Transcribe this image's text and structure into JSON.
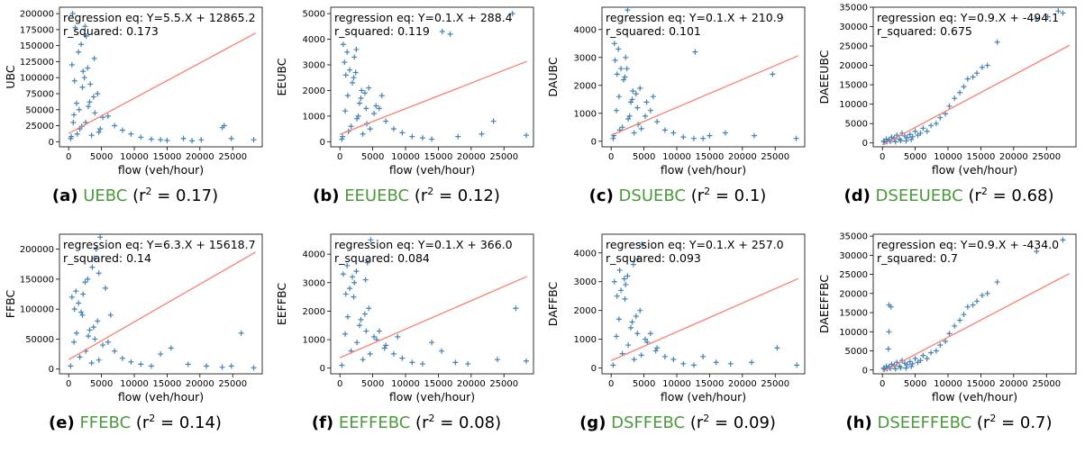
{
  "chart_data": [
    {
      "type": "scatter",
      "xlabel": "flow (veh/hour)",
      "ylabel": "UBC",
      "xlim": [
        -1400,
        29500
      ],
      "ylim": [
        -8000,
        210000
      ],
      "xticks": [
        0,
        5000,
        10000,
        15000,
        20000,
        25000
      ],
      "yticks": [
        0,
        25000,
        50000,
        75000,
        100000,
        125000,
        150000,
        175000,
        200000
      ],
      "annotation": [
        "regression eq: Y=5.5.X + 12865.2",
        "r_squared: 0.173"
      ],
      "regression": {
        "slope": 5.5,
        "intercept": 12865.2
      },
      "series": [
        {
          "x": [
            300,
            800,
            1200,
            1700,
            2100,
            2600,
            3000,
            3500,
            4000,
            4600,
            5200,
            500,
            1500,
            2500,
            3800,
            900,
            2200,
            3200,
            4400,
            6000,
            7000,
            8200,
            9500,
            11000,
            12600,
            14000,
            15000,
            17500,
            18800,
            20200,
            23400,
            23700,
            24800,
            28200,
            600,
            1900,
            2700,
            3900,
            1000,
            2400,
            400,
            1300,
            3300,
            2000,
            4800,
            700,
            2900,
            1600
          ],
          "y": [
            5000,
            42000,
            60000,
            20000,
            85000,
            30000,
            55000,
            10000,
            45000,
            15000,
            38000,
            120000,
            140000,
            180000,
            70000,
            95000,
            110000,
            62000,
            75000,
            40000,
            25000,
            18000,
            12000,
            7000,
            4000,
            3000,
            2000,
            5000,
            1500,
            3000,
            22000,
            25000,
            5000,
            3000,
            200000,
            152000,
            165000,
            130000,
            178000,
            100000,
            8000,
            12000,
            90000,
            24000,
            20000,
            30000,
            115000,
            50000
          ]
        }
      ],
      "caption": {
        "label": "(a)",
        "name": "UEBC",
        "r2": "0.17"
      }
    },
    {
      "type": "scatter",
      "xlabel": "flow (veh/hour)",
      "ylabel": "EEUBC",
      "xlim": [
        -1400,
        29500
      ],
      "ylim": [
        -200,
        5250
      ],
      "xticks": [
        0,
        5000,
        10000,
        15000,
        20000,
        25000
      ],
      "yticks": [
        0,
        1000,
        2000,
        3000,
        4000,
        5000
      ],
      "annotation": [
        "regression eq: Y=0.1.X + 288.4",
        "r_squared: 0.119"
      ],
      "regression": {
        "slope": 0.1,
        "intercept": 288.4
      },
      "series": [
        {
          "x": [
            300,
            800,
            1200,
            1700,
            2100,
            2600,
            3000,
            3500,
            4000,
            4600,
            5200,
            500,
            1500,
            2500,
            3800,
            900,
            2200,
            3200,
            4400,
            6000,
            7000,
            8200,
            9500,
            11000,
            12600,
            14000,
            15600,
            16800,
            18000,
            21600,
            23400,
            26300,
            28400,
            700,
            1900,
            2800,
            3300,
            1100,
            2400,
            400,
            1300,
            4100,
            6400,
            5500
          ],
          "y": [
            100,
            1200,
            1800,
            600,
            2500,
            900,
            1500,
            300,
            1300,
            500,
            1100,
            3800,
            2800,
            3600,
            1900,
            2600,
            3300,
            1700,
            2100,
            1300,
            800,
            500,
            350,
            200,
            150,
            100,
            4300,
            4200,
            200,
            300,
            800,
            5000,
            250,
            3100,
            2300,
            1000,
            2000,
            3500,
            2700,
            200,
            400,
            700,
            1800,
            1400
          ]
        }
      ],
      "caption": {
        "label": "(b)",
        "name": "EEUEBC",
        "r2": "0.12"
      }
    },
    {
      "type": "scatter",
      "xlabel": "flow (veh/hour)",
      "ylabel": "DAUBC",
      "xlim": [
        -1400,
        29500
      ],
      "ylim": [
        -200,
        4800
      ],
      "xticks": [
        0,
        5000,
        10000,
        15000,
        20000,
        25000
      ],
      "yticks": [
        0,
        1000,
        2000,
        3000,
        4000
      ],
      "annotation": [
        "regression eq: Y=0.1.X + 210.9",
        "r_squared: 0.101"
      ],
      "regression": {
        "slope": 0.1,
        "intercept": 210.9
      },
      "series": [
        {
          "x": [
            300,
            800,
            1200,
            1700,
            2100,
            2600,
            3000,
            3500,
            4000,
            4600,
            5200,
            500,
            1500,
            2500,
            3800,
            900,
            2200,
            3200,
            4400,
            6000,
            7000,
            8200,
            9500,
            11000,
            12600,
            14000,
            15000,
            17400,
            21800,
            24600,
            28200,
            600,
            1900,
            2800,
            3300,
            1100,
            2400,
            400,
            1300,
            4100,
            5400,
            6400,
            12800
          ],
          "y": [
            100,
            1100,
            1600,
            500,
            2300,
            800,
            1400,
            300,
            1200,
            450,
            900,
            3500,
            2600,
            4700,
            1700,
            2400,
            3000,
            1500,
            1900,
            1100,
            700,
            400,
            300,
            150,
            100,
            100,
            200,
            300,
            200,
            2400,
            100,
            2900,
            2200,
            900,
            1800,
            3300,
            2600,
            200,
            400,
            600,
            1400,
            1600,
            3200
          ]
        }
      ],
      "caption": {
        "label": "(c)",
        "name": "DSUEBC",
        "r2": "0.1"
      }
    },
    {
      "type": "scatter",
      "xlabel": "flow (veh/hour)",
      "ylabel": "DAEEUBC",
      "xlim": [
        -1400,
        29500
      ],
      "ylim": [
        -1000,
        35000
      ],
      "xticks": [
        0,
        5000,
        10000,
        15000,
        20000,
        25000
      ],
      "yticks": [
        0,
        5000,
        10000,
        15000,
        20000,
        25000,
        30000,
        35000
      ],
      "annotation": [
        "regression eq: Y=0.9.X + -494.1",
        "r_squared: 0.675"
      ],
      "regression": {
        "slope": 0.9,
        "intercept": -494.1
      },
      "series": [
        {
          "x": [
            200,
            600,
            1000,
            1400,
            1800,
            2200,
            2600,
            3000,
            3400,
            3800,
            4200,
            4600,
            5000,
            5400,
            300,
            700,
            1200,
            2000,
            2800,
            3600,
            4400,
            5800,
            6200,
            6800,
            7400,
            8200,
            8800,
            9600,
            10200,
            11000,
            11800,
            12400,
            13000,
            13800,
            14400,
            15200,
            16000,
            17500,
            23500,
            25200,
            26800,
            27500
          ],
          "y": [
            500,
            1000,
            800,
            1500,
            1200,
            2000,
            1000,
            2500,
            1800,
            1400,
            2200,
            1600,
            3000,
            2000,
            200,
            300,
            400,
            300,
            600,
            500,
            900,
            2500,
            3800,
            3000,
            4500,
            5000,
            6500,
            7500,
            9500,
            11500,
            13000,
            14500,
            16500,
            17000,
            18000,
            19500,
            20000,
            26000,
            32000,
            32500,
            34000,
            33500
          ]
        }
      ],
      "caption": {
        "label": "(d)",
        "name": "DSEEUEBC",
        "r2": "0.68"
      }
    },
    {
      "type": "scatter",
      "xlabel": "flow (veh/hour)",
      "ylabel": "FFBC",
      "xlim": [
        -1400,
        29500
      ],
      "ylim": [
        -8000,
        225000
      ],
      "xticks": [
        0,
        5000,
        10000,
        15000,
        20000,
        25000
      ],
      "yticks": [
        0,
        50000,
        100000,
        150000,
        200000
      ],
      "annotation": [
        "regression eq: Y=6.3.X + 15618.7",
        "r_squared: 0.14"
      ],
      "regression": {
        "slope": 6.3,
        "intercept": 15618.7
      },
      "series": [
        {
          "x": [
            300,
            800,
            1200,
            1700,
            2100,
            2600,
            3000,
            3500,
            4000,
            4600,
            5200,
            500,
            1500,
            2500,
            3800,
            900,
            2200,
            3200,
            4400,
            6000,
            7000,
            8200,
            9500,
            11000,
            12600,
            14000,
            15600,
            18200,
            21000,
            23400,
            24800,
            26300,
            28200,
            3600,
            4200,
            4800,
            3900,
            2900,
            5600,
            6400,
            4600,
            1100,
            1900
          ],
          "y": [
            5000,
            45000,
            60000,
            20000,
            90000,
            30000,
            55000,
            10000,
            50000,
            15000,
            40000,
            120000,
            110000,
            145000,
            70000,
            100000,
            125000,
            65000,
            80000,
            45000,
            30000,
            18000,
            12000,
            8000,
            5000,
            25000,
            35000,
            8000,
            5000,
            3000,
            5000,
            60000,
            2000,
            170000,
            200000,
            220000,
            185000,
            150000,
            135000,
            90000,
            160000,
            130000,
            95000
          ]
        }
      ],
      "caption": {
        "label": "(e)",
        "name": "FFEBC",
        "r2": "0.14"
      }
    },
    {
      "type": "scatter",
      "xlabel": "flow (veh/hour)",
      "ylabel": "EEFFBC",
      "xlim": [
        -1400,
        29500
      ],
      "ylim": [
        -200,
        4700
      ],
      "xticks": [
        0,
        5000,
        10000,
        15000,
        20000,
        25000
      ],
      "yticks": [
        0,
        1000,
        2000,
        3000,
        4000
      ],
      "annotation": [
        "regression eq: Y=0.1.X + 366.0",
        "r_squared: 0.084"
      ],
      "regression": {
        "slope": 0.1,
        "intercept": 366.0
      },
      "series": [
        {
          "x": [
            300,
            800,
            1200,
            1700,
            2100,
            2600,
            3000,
            3500,
            4000,
            4600,
            5200,
            500,
            1500,
            2500,
            3800,
            900,
            2200,
            3200,
            4400,
            6000,
            7000,
            8200,
            9500,
            11000,
            12600,
            14000,
            15500,
            17600,
            19500,
            24000,
            26800,
            28400,
            4200,
            4700,
            3900,
            1100,
            1900,
            5600,
            6800,
            8800
          ],
          "y": [
            100,
            1200,
            1800,
            600,
            2500,
            900,
            1500,
            300,
            1300,
            500,
            1100,
            3300,
            2800,
            3400,
            1900,
            2600,
            3000,
            1700,
            2100,
            1300,
            800,
            500,
            350,
            200,
            150,
            900,
            600,
            200,
            150,
            300,
            2100,
            250,
            3700,
            4500,
            3100,
            3600,
            3200,
            1000,
            700,
            1100
          ]
        }
      ],
      "caption": {
        "label": "(f)",
        "name": "EEFFEBC",
        "r2": "0.08"
      }
    },
    {
      "type": "scatter",
      "xlabel": "flow (veh/hour)",
      "ylabel": "DAFFBC",
      "xlim": [
        -1400,
        29500
      ],
      "ylim": [
        -200,
        4650
      ],
      "xticks": [
        0,
        5000,
        10000,
        15000,
        20000,
        25000
      ],
      "yticks": [
        0,
        1000,
        2000,
        3000,
        4000
      ],
      "annotation": [
        "regression eq: Y=0.1.X + 257.0",
        "r_squared: 0.093"
      ],
      "regression": {
        "slope": 0.1,
        "intercept": 257.0
      },
      "series": [
        {
          "x": [
            300,
            800,
            1200,
            1700,
            2100,
            2600,
            3000,
            3500,
            4000,
            4600,
            5200,
            500,
            1500,
            2500,
            3800,
            900,
            2200,
            3200,
            4400,
            6000,
            7000,
            8200,
            9500,
            11000,
            12600,
            14000,
            16000,
            18200,
            21400,
            25300,
            28300,
            4100,
            4700,
            3400,
            1300,
            2000,
            5500,
            6800
          ],
          "y": [
            100,
            1100,
            1700,
            500,
            2400,
            800,
            1400,
            300,
            1200,
            450,
            1000,
            3000,
            2700,
            3200,
            1800,
            2500,
            2900,
            1600,
            2000,
            1200,
            700,
            400,
            300,
            150,
            100,
            400,
            200,
            150,
            200,
            700,
            100,
            3800,
            4300,
            3600,
            3400,
            3100,
            900,
            600
          ]
        }
      ],
      "caption": {
        "label": "(g)",
        "name": "DSFFEBC",
        "r2": "0.09"
      }
    },
    {
      "type": "scatter",
      "xlabel": "flow (veh/hour)",
      "ylabel": "DAEEFFBC",
      "xlim": [
        -1400,
        29500
      ],
      "ylim": [
        -1000,
        35500
      ],
      "xticks": [
        0,
        5000,
        10000,
        15000,
        20000,
        25000
      ],
      "yticks": [
        0,
        5000,
        10000,
        15000,
        20000,
        25000,
        30000,
        35000
      ],
      "annotation": [
        "regression eq: Y=0.9.X + -434.0",
        "r_squared: 0.7"
      ],
      "regression": {
        "slope": 0.9,
        "intercept": -434.0
      },
      "series": [
        {
          "x": [
            200,
            600,
            1000,
            1400,
            1800,
            2200,
            2600,
            3000,
            3400,
            3800,
            4200,
            4600,
            5000,
            5400,
            300,
            700,
            1200,
            2000,
            2800,
            3600,
            4400,
            5800,
            6200,
            6800,
            7400,
            8200,
            8800,
            9600,
            10200,
            11000,
            11800,
            12400,
            13000,
            13800,
            14400,
            15200,
            16000,
            17500,
            23500,
            27500,
            1000,
            1000,
            1300,
            900
          ],
          "y": [
            500,
            1000,
            800,
            1500,
            1200,
            2000,
            1000,
            2500,
            1800,
            1400,
            2200,
            1600,
            3000,
            2000,
            200,
            300,
            400,
            300,
            600,
            500,
            900,
            2500,
            3800,
            3000,
            4500,
            5000,
            6500,
            7500,
            9500,
            11500,
            13000,
            14500,
            16500,
            17000,
            18000,
            19500,
            20000,
            23000,
            31000,
            34000,
            17000,
            10000,
            16500,
            5500
          ]
        }
      ],
      "caption": {
        "label": "(h)",
        "name": "DSEEFFEBC",
        "r2": "0.7"
      }
    }
  ],
  "colors": {
    "points": "#4682b4",
    "regression": "#fa8072",
    "caption_name": "#4a9a3b"
  }
}
